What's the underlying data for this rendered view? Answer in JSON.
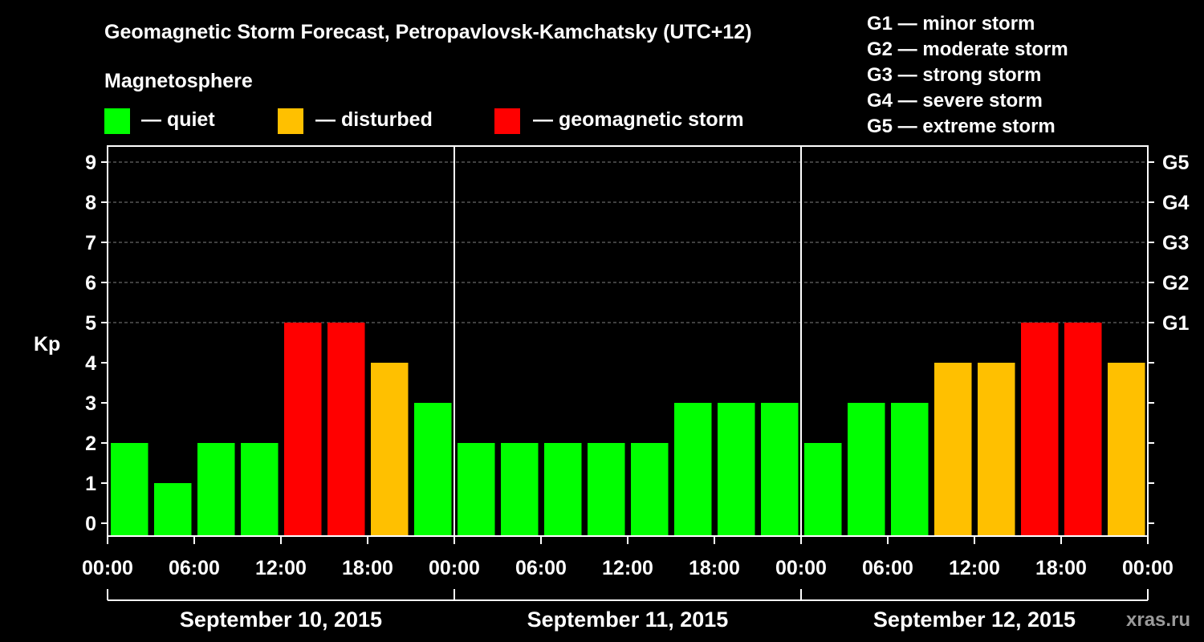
{
  "chart_data": {
    "type": "bar",
    "title": "Geomagnetic Storm Forecast, Petropavlovsk-Kamchatsky (UTC+12)",
    "ylabel": "Kp",
    "ylim": [
      0,
      9
    ],
    "legend": {
      "heading": "Magnetosphere",
      "entries": [
        {
          "label": "— quiet",
          "color": "#00ff00"
        },
        {
          "label": "— disturbed",
          "color": "#ffc000"
        },
        {
          "label": "— geomagnetic storm",
          "color": "#ff0000"
        }
      ]
    },
    "scale_legend": [
      "G1 — minor storm",
      "G2 — moderate storm",
      "G3 — strong storm",
      "G4 — severe storm",
      "G5 — extreme storm"
    ],
    "y_ticks": [
      "0",
      "1",
      "2",
      "3",
      "4",
      "5",
      "6",
      "7",
      "8",
      "9"
    ],
    "right_axis_labels": [
      {
        "kp": 5,
        "label": "G1"
      },
      {
        "kp": 6,
        "label": "G2"
      },
      {
        "kp": 7,
        "label": "G3"
      },
      {
        "kp": 8,
        "label": "G4"
      },
      {
        "kp": 9,
        "label": "G5"
      }
    ],
    "x_tick_labels": [
      "00:00",
      "06:00",
      "12:00",
      "18:00",
      "00:00",
      "06:00",
      "12:00",
      "18:00",
      "00:00",
      "06:00",
      "12:00",
      "18:00",
      "00:00"
    ],
    "days": [
      "September 10, 2015",
      "September 11, 2015",
      "September 12, 2015"
    ],
    "values": [
      2,
      1,
      2,
      2,
      5,
      5,
      4,
      3,
      2,
      2,
      2,
      2,
      2,
      3,
      3,
      3,
      2,
      3,
      3,
      4,
      4,
      5,
      5,
      4
    ],
    "colors": {
      "quiet": "#00ff00",
      "disturbed": "#ffc000",
      "storm": "#ff0000",
      "background": "#000000",
      "axis": "#ffffff",
      "grid": "#808080"
    },
    "watermark": "xras.ru"
  }
}
